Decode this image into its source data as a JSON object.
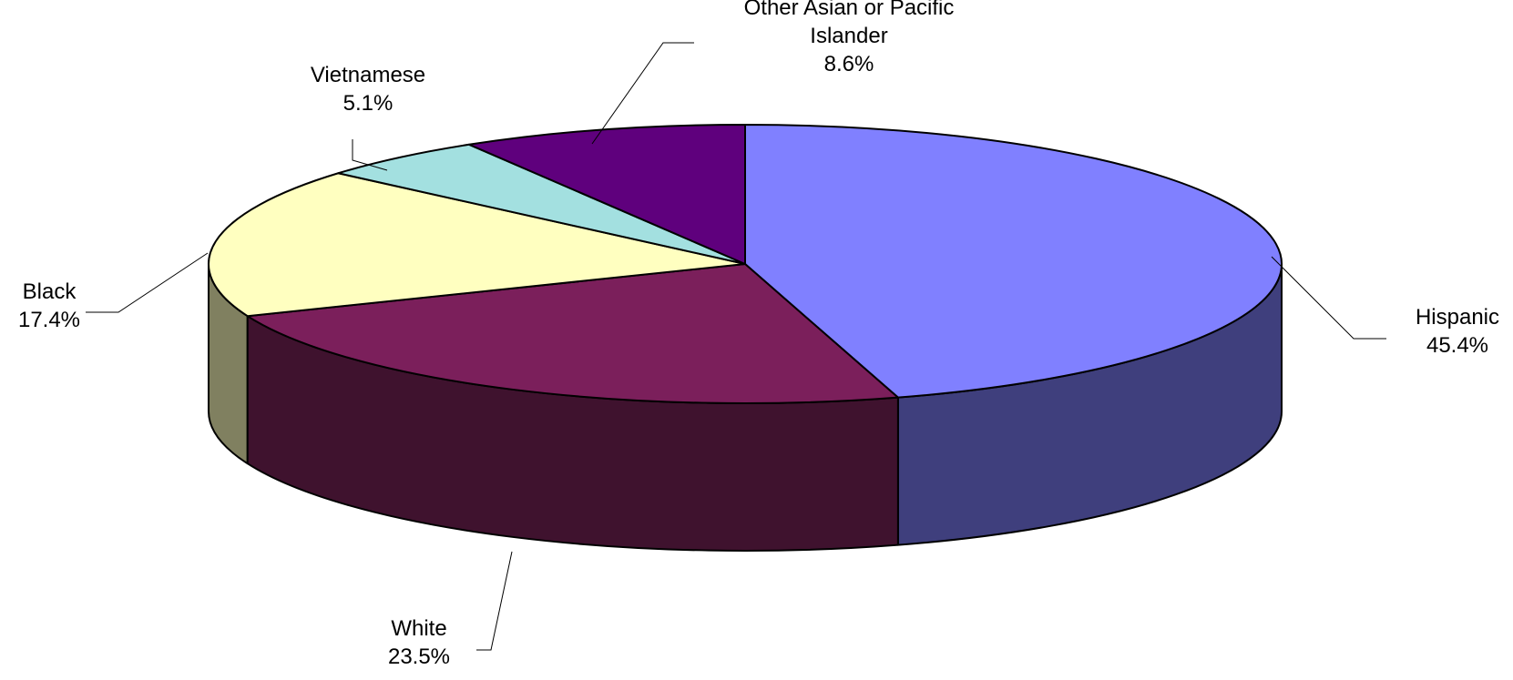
{
  "chart_data": {
    "type": "pie",
    "style": "3d-tilted",
    "legend": "none",
    "slices": [
      {
        "label": "Hispanic",
        "value": 45.4,
        "value_label": "45.4%",
        "color": "#8080FF",
        "side_color": "#3F3F7D"
      },
      {
        "label": "White",
        "value": 23.5,
        "value_label": "23.5%",
        "color": "#7B1F5B",
        "side_color": "#3F122E"
      },
      {
        "label": "Black",
        "value": 17.4,
        "value_label": "17.4%",
        "color": "#FFFFC0",
        "side_color": "#808060"
      },
      {
        "label": "Vietnamese",
        "value": 5.1,
        "value_label": "5.1%",
        "color": "#A3E0E0",
        "side_color": "#527070"
      },
      {
        "label": "Other Asian or Pacific\nIslander",
        "value": 8.6,
        "value_label": "8.6%",
        "color": "#5F007D",
        "side_color": "#30003F"
      }
    ]
  }
}
